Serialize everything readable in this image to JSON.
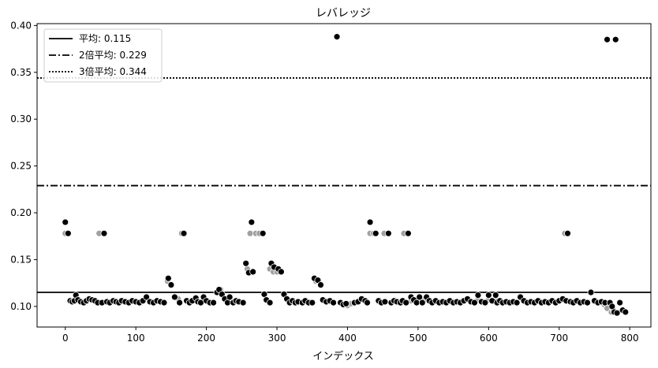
{
  "chart_data": {
    "type": "scatter",
    "title": "レバレッジ",
    "xlabel": "インデックス",
    "ylabel": "",
    "xlim": [
      -40,
      830
    ],
    "ylim": [
      0.078,
      0.402
    ],
    "x_ticks": [
      0,
      100,
      200,
      300,
      400,
      500,
      600,
      700,
      800
    ],
    "y_ticks": [
      0.1,
      0.15,
      0.2,
      0.25,
      0.3,
      0.35,
      0.4
    ],
    "grid": false,
    "legend_position": "top-left",
    "reference_lines": [
      {
        "label": "平均: 0.115",
        "value": 0.115,
        "style": "solid"
      },
      {
        "label": "2倍平均: 0.229",
        "value": 0.229,
        "style": "dashdot"
      },
      {
        "label": "3倍平均: 0.344",
        "value": 0.344,
        "style": "dotted"
      }
    ],
    "series": [
      {
        "color": "#a0a0a0",
        "points": [
          [
            0,
            0.178
          ],
          [
            48,
            0.178
          ],
          [
            145,
            0.127
          ],
          [
            160,
            0.108
          ],
          [
            165,
            0.178
          ],
          [
            220,
            0.118
          ],
          [
            235,
            0.106
          ],
          [
            258,
            0.14
          ],
          [
            262,
            0.178
          ],
          [
            270,
            0.178
          ],
          [
            275,
            0.178
          ],
          [
            290,
            0.14
          ],
          [
            295,
            0.137
          ],
          [
            300,
            0.137
          ],
          [
            355,
            0.127
          ],
          [
            400,
            0.101
          ],
          [
            405,
            0.103
          ],
          [
            432,
            0.178
          ],
          [
            437,
            0.178
          ],
          [
            452,
            0.178
          ],
          [
            480,
            0.178
          ],
          [
            490,
            0.106
          ],
          [
            508,
            0.106
          ],
          [
            585,
            0.107
          ],
          [
            600,
            0.107
          ],
          [
            610,
            0.107
          ],
          [
            708,
            0.178
          ],
          [
            764,
            0.102
          ],
          [
            768,
            0.098
          ],
          [
            774,
            0.094
          ],
          [
            777,
            0.096
          ]
        ]
      },
      {
        "color": "#000000",
        "points": [
          [
            0,
            0.19
          ],
          [
            4,
            0.178
          ],
          [
            7,
            0.106
          ],
          [
            10,
            0.105
          ],
          [
            13,
            0.106
          ],
          [
            15,
            0.112
          ],
          [
            18,
            0.107
          ],
          [
            22,
            0.105
          ],
          [
            26,
            0.104
          ],
          [
            30,
            0.106
          ],
          [
            34,
            0.108
          ],
          [
            38,
            0.107
          ],
          [
            42,
            0.106
          ],
          [
            46,
            0.104
          ],
          [
            52,
            0.104
          ],
          [
            55,
            0.178
          ],
          [
            59,
            0.105
          ],
          [
            63,
            0.104
          ],
          [
            68,
            0.106
          ],
          [
            72,
            0.105
          ],
          [
            76,
            0.104
          ],
          [
            80,
            0.106
          ],
          [
            85,
            0.105
          ],
          [
            90,
            0.104
          ],
          [
            95,
            0.106
          ],
          [
            100,
            0.105
          ],
          [
            105,
            0.104
          ],
          [
            110,
            0.106
          ],
          [
            115,
            0.11
          ],
          [
            120,
            0.105
          ],
          [
            125,
            0.104
          ],
          [
            130,
            0.106
          ],
          [
            135,
            0.105
          ],
          [
            140,
            0.104
          ],
          [
            146,
            0.13
          ],
          [
            150,
            0.123
          ],
          [
            155,
            0.11
          ],
          [
            162,
            0.104
          ],
          [
            168,
            0.178
          ],
          [
            172,
            0.106
          ],
          [
            176,
            0.104
          ],
          [
            180,
            0.106
          ],
          [
            185,
            0.109
          ],
          [
            188,
            0.105
          ],
          [
            192,
            0.104
          ],
          [
            196,
            0.11
          ],
          [
            200,
            0.106
          ],
          [
            205,
            0.104
          ],
          [
            210,
            0.104
          ],
          [
            215,
            0.115
          ],
          [
            218,
            0.118
          ],
          [
            222,
            0.113
          ],
          [
            226,
            0.108
          ],
          [
            230,
            0.104
          ],
          [
            233,
            0.11
          ],
          [
            238,
            0.104
          ],
          [
            242,
            0.106
          ],
          [
            246,
            0.105
          ],
          [
            252,
            0.104
          ],
          [
            256,
            0.146
          ],
          [
            260,
            0.136
          ],
          [
            264,
            0.19
          ],
          [
            266,
            0.137
          ],
          [
            280,
            0.178
          ],
          [
            282,
            0.113
          ],
          [
            285,
            0.107
          ],
          [
            290,
            0.104
          ],
          [
            292,
            0.146
          ],
          [
            296,
            0.142
          ],
          [
            302,
            0.14
          ],
          [
            306,
            0.137
          ],
          [
            310,
            0.113
          ],
          [
            314,
            0.108
          ],
          [
            318,
            0.104
          ],
          [
            322,
            0.106
          ],
          [
            326,
            0.104
          ],
          [
            330,
            0.105
          ],
          [
            336,
            0.104
          ],
          [
            340,
            0.106
          ],
          [
            345,
            0.104
          ],
          [
            350,
            0.104
          ],
          [
            353,
            0.13
          ],
          [
            358,
            0.128
          ],
          [
            362,
            0.123
          ],
          [
            365,
            0.107
          ],
          [
            370,
            0.105
          ],
          [
            375,
            0.106
          ],
          [
            380,
            0.104
          ],
          [
            385,
            0.388
          ],
          [
            390,
            0.104
          ],
          [
            394,
            0.102
          ],
          [
            398,
            0.103
          ],
          [
            410,
            0.104
          ],
          [
            415,
            0.105
          ],
          [
            420,
            0.108
          ],
          [
            425,
            0.106
          ],
          [
            428,
            0.104
          ],
          [
            432,
            0.19
          ],
          [
            440,
            0.178
          ],
          [
            444,
            0.106
          ],
          [
            448,
            0.104
          ],
          [
            453,
            0.105
          ],
          [
            458,
            0.178
          ],
          [
            462,
            0.104
          ],
          [
            466,
            0.106
          ],
          [
            470,
            0.105
          ],
          [
            475,
            0.104
          ],
          [
            478,
            0.106
          ],
          [
            483,
            0.104
          ],
          [
            486,
            0.178
          ],
          [
            490,
            0.11
          ],
          [
            494,
            0.107
          ],
          [
            498,
            0.104
          ],
          [
            502,
            0.11
          ],
          [
            506,
            0.104
          ],
          [
            512,
            0.11
          ],
          [
            516,
            0.106
          ],
          [
            520,
            0.104
          ],
          [
            525,
            0.106
          ],
          [
            530,
            0.104
          ],
          [
            535,
            0.105
          ],
          [
            540,
            0.104
          ],
          [
            545,
            0.106
          ],
          [
            550,
            0.104
          ],
          [
            555,
            0.105
          ],
          [
            560,
            0.104
          ],
          [
            565,
            0.106
          ],
          [
            570,
            0.108
          ],
          [
            575,
            0.105
          ],
          [
            580,
            0.104
          ],
          [
            585,
            0.112
          ],
          [
            590,
            0.105
          ],
          [
            595,
            0.104
          ],
          [
            600,
            0.112
          ],
          [
            605,
            0.106
          ],
          [
            610,
            0.112
          ],
          [
            612,
            0.104
          ],
          [
            616,
            0.106
          ],
          [
            620,
            0.104
          ],
          [
            625,
            0.105
          ],
          [
            630,
            0.104
          ],
          [
            635,
            0.105
          ],
          [
            640,
            0.104
          ],
          [
            645,
            0.11
          ],
          [
            650,
            0.106
          ],
          [
            655,
            0.104
          ],
          [
            660,
            0.105
          ],
          [
            665,
            0.104
          ],
          [
            670,
            0.106
          ],
          [
            675,
            0.104
          ],
          [
            680,
            0.105
          ],
          [
            685,
            0.104
          ],
          [
            690,
            0.106
          ],
          [
            695,
            0.104
          ],
          [
            700,
            0.106
          ],
          [
            705,
            0.108
          ],
          [
            710,
            0.106
          ],
          [
            712,
            0.178
          ],
          [
            716,
            0.105
          ],
          [
            720,
            0.104
          ],
          [
            725,
            0.106
          ],
          [
            730,
            0.104
          ],
          [
            735,
            0.105
          ],
          [
            740,
            0.104
          ],
          [
            745,
            0.115
          ],
          [
            750,
            0.106
          ],
          [
            755,
            0.104
          ],
          [
            760,
            0.105
          ],
          [
            765,
            0.104
          ],
          [
            768,
            0.385
          ],
          [
            772,
            0.104
          ],
          [
            775,
            0.1
          ],
          [
            778,
            0.094
          ],
          [
            780,
            0.385
          ],
          [
            782,
            0.093
          ],
          [
            786,
            0.104
          ],
          [
            790,
            0.096
          ],
          [
            794,
            0.094
          ]
        ]
      }
    ]
  }
}
